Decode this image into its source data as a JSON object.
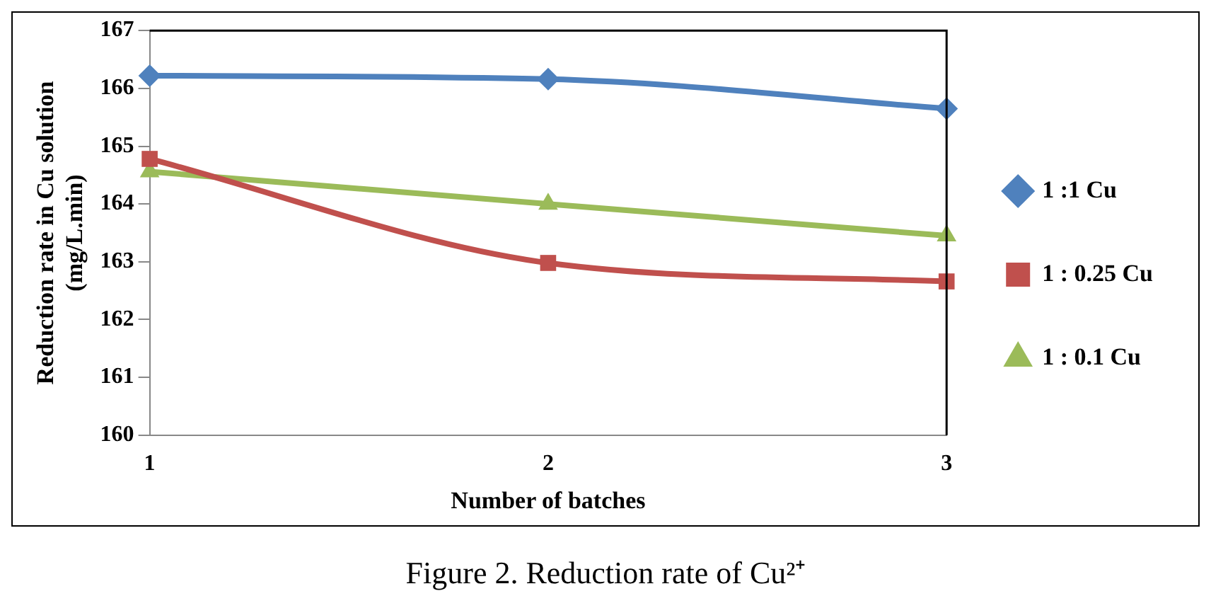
{
  "chart_data": {
    "type": "line",
    "xlabel": "Number of batches",
    "ylabel": "Reduction rate in Cu solution\n(mg/L.min)",
    "x": [
      1,
      2,
      3
    ],
    "xlim": [
      1,
      3
    ],
    "xticks": [
      1,
      2,
      3
    ],
    "ylim": [
      160,
      167
    ],
    "yticks": [
      160,
      161,
      162,
      163,
      164,
      165,
      166,
      167
    ],
    "grid": false,
    "legend": "right",
    "annotations": [
      "Figure 2. Reduction rate of Cu²⁺"
    ],
    "series": [
      {
        "name": "1 :1 Cu",
        "color": "#4f81bd",
        "marker": "diamond",
        "values": [
          166.22,
          166.16,
          165.65
        ]
      },
      {
        "name": "1 : 0.25 Cu",
        "color": "#c0504d",
        "marker": "square",
        "values": [
          164.78,
          162.98,
          162.66
        ]
      },
      {
        "name": "1 : 0.1 Cu",
        "color": "#9bbb59",
        "marker": "triangle",
        "values": [
          164.56,
          164.0,
          163.45
        ]
      }
    ]
  }
}
